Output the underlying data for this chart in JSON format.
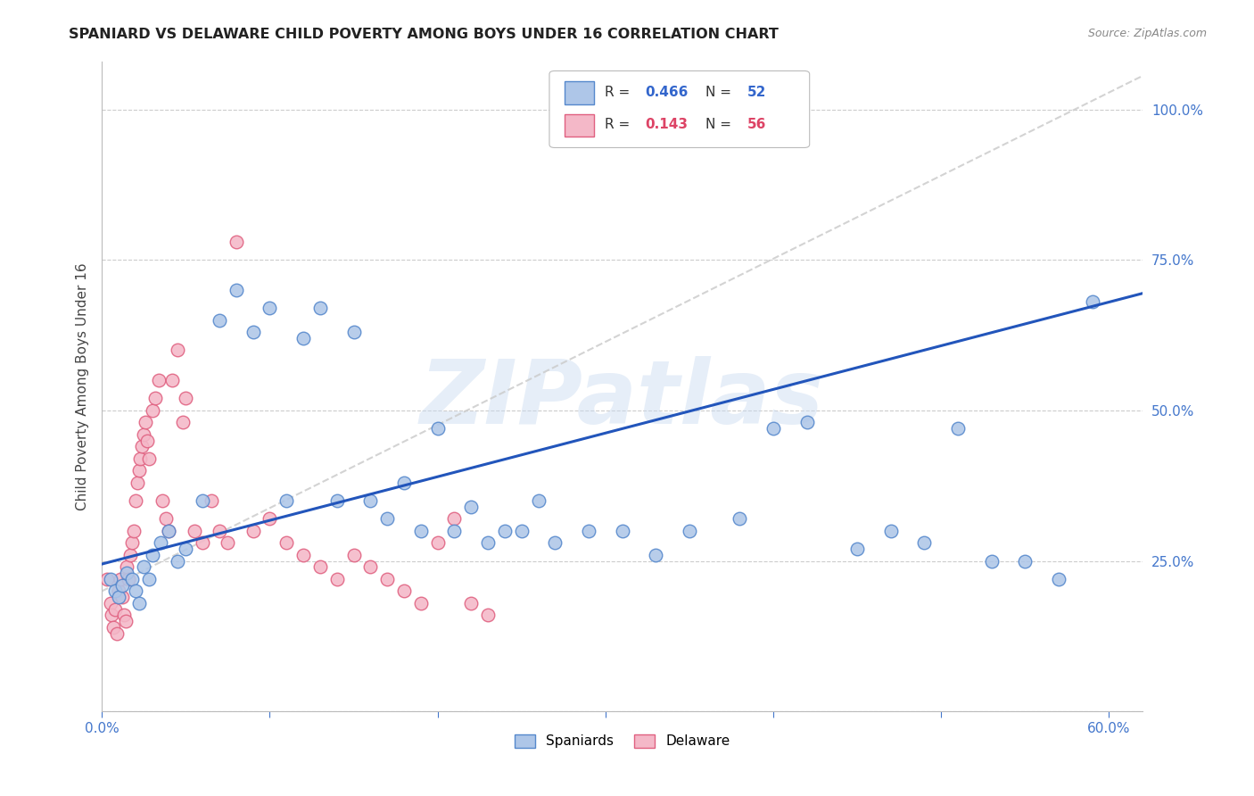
{
  "title": "SPANIARD VS DELAWARE CHILD POVERTY AMONG BOYS UNDER 16 CORRELATION CHART",
  "source": "Source: ZipAtlas.com",
  "ylabel": "Child Poverty Among Boys Under 16",
  "xlim": [
    0.0,
    0.62
  ],
  "ylim": [
    0.0,
    1.08
  ],
  "yticks": [
    0.0,
    0.25,
    0.5,
    0.75,
    1.0
  ],
  "yticklabels": [
    "",
    "25.0%",
    "50.0%",
    "75.0%",
    "100.0%"
  ],
  "background_color": "#ffffff",
  "grid_color": "#cccccc",
  "watermark": "ZIPatlas",
  "spaniards_color": "#aec6e8",
  "delaware_color": "#f4b8c8",
  "spaniards_edge": "#5588cc",
  "delaware_edge": "#e06080",
  "line1_color": "#2255bb",
  "line2_color": "#cccccc",
  "line1_intercept": 0.245,
  "line1_slope": 0.725,
  "line2_intercept": 0.2,
  "line2_slope": 1.38,
  "spaniards_x": [
    0.005,
    0.008,
    0.01,
    0.012,
    0.015,
    0.018,
    0.02,
    0.022,
    0.025,
    0.028,
    0.03,
    0.035,
    0.04,
    0.045,
    0.05,
    0.06,
    0.07,
    0.08,
    0.09,
    0.1,
    0.11,
    0.12,
    0.13,
    0.14,
    0.15,
    0.16,
    0.17,
    0.18,
    0.19,
    0.2,
    0.21,
    0.22,
    0.23,
    0.24,
    0.25,
    0.26,
    0.27,
    0.29,
    0.31,
    0.33,
    0.35,
    0.38,
    0.4,
    0.42,
    0.45,
    0.47,
    0.49,
    0.51,
    0.53,
    0.55,
    0.57,
    0.59
  ],
  "spaniards_y": [
    0.22,
    0.2,
    0.19,
    0.21,
    0.23,
    0.22,
    0.2,
    0.18,
    0.24,
    0.22,
    0.26,
    0.28,
    0.3,
    0.25,
    0.27,
    0.35,
    0.65,
    0.7,
    0.63,
    0.67,
    0.35,
    0.62,
    0.67,
    0.35,
    0.63,
    0.35,
    0.32,
    0.38,
    0.3,
    0.47,
    0.3,
    0.34,
    0.28,
    0.3,
    0.3,
    0.35,
    0.28,
    0.3,
    0.3,
    0.26,
    0.3,
    0.32,
    0.47,
    0.48,
    0.27,
    0.3,
    0.28,
    0.47,
    0.25,
    0.25,
    0.22,
    0.68
  ],
  "delaware_x": [
    0.003,
    0.005,
    0.006,
    0.007,
    0.008,
    0.009,
    0.01,
    0.011,
    0.012,
    0.013,
    0.014,
    0.015,
    0.016,
    0.017,
    0.018,
    0.019,
    0.02,
    0.021,
    0.022,
    0.023,
    0.024,
    0.025,
    0.026,
    0.027,
    0.028,
    0.03,
    0.032,
    0.034,
    0.036,
    0.038,
    0.04,
    0.042,
    0.045,
    0.048,
    0.05,
    0.055,
    0.06,
    0.065,
    0.07,
    0.075,
    0.08,
    0.09,
    0.1,
    0.11,
    0.12,
    0.13,
    0.14,
    0.15,
    0.16,
    0.17,
    0.18,
    0.19,
    0.2,
    0.21,
    0.22,
    0.23
  ],
  "delaware_y": [
    0.22,
    0.18,
    0.16,
    0.14,
    0.17,
    0.13,
    0.2,
    0.22,
    0.19,
    0.16,
    0.15,
    0.24,
    0.22,
    0.26,
    0.28,
    0.3,
    0.35,
    0.38,
    0.4,
    0.42,
    0.44,
    0.46,
    0.48,
    0.45,
    0.42,
    0.5,
    0.52,
    0.55,
    0.35,
    0.32,
    0.3,
    0.55,
    0.6,
    0.48,
    0.52,
    0.3,
    0.28,
    0.35,
    0.3,
    0.28,
    0.78,
    0.3,
    0.32,
    0.28,
    0.26,
    0.24,
    0.22,
    0.26,
    0.24,
    0.22,
    0.2,
    0.18,
    0.28,
    0.32,
    0.18,
    0.16
  ]
}
